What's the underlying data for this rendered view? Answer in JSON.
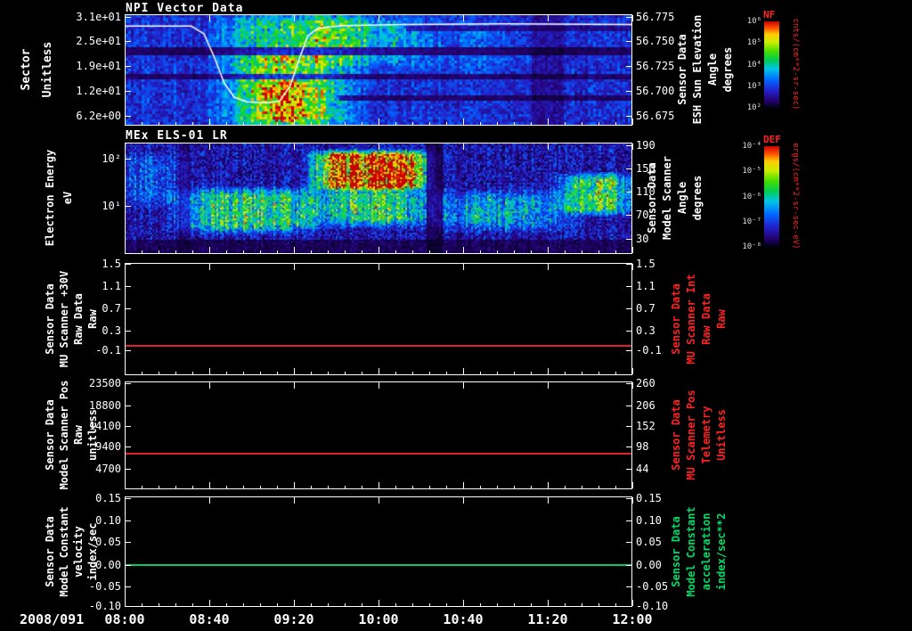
{
  "figure": {
    "background": "#000000"
  },
  "colors": {
    "axis": "#ffffff",
    "label_red": "#ff2222",
    "label_green": "#00dd66",
    "red_series": "#dd2222",
    "green_series": "#00cc66",
    "colormap": [
      [
        0,
        "#000014"
      ],
      [
        0.08,
        "#24006e"
      ],
      [
        0.2,
        "#2222cc"
      ],
      [
        0.32,
        "#0066ff"
      ],
      [
        0.45,
        "#00c4e8"
      ],
      [
        0.55,
        "#00cc55"
      ],
      [
        0.65,
        "#44dd00"
      ],
      [
        0.76,
        "#ccee00"
      ],
      [
        0.85,
        "#ffcc00"
      ],
      [
        0.92,
        "#ff5500"
      ],
      [
        1,
        "#cc0000"
      ]
    ]
  },
  "chart_data": {
    "type": "multi-panel time-series: 2 spectrograms + 3 constant line plots",
    "x_axis": {
      "date_label": "2008/091",
      "tick_labels": [
        "08:00",
        "08:40",
        "09:20",
        "10:00",
        "10:40",
        "11:20",
        "12:00"
      ],
      "range": [
        "2008/091 08:00",
        "2008/091 12:00"
      ]
    },
    "panels": [
      {
        "title": "NPI Vector Data",
        "kind": "spectrogram",
        "left_axis": {
          "label": "Sector\nUnitless",
          "color": "#ffffff",
          "ticks": [
            {
              "label": "3.1e+01",
              "pos": 0.02
            },
            {
              "label": "2.5e+01",
              "pos": 0.24
            },
            {
              "label": "1.9e+01",
              "pos": 0.46
            },
            {
              "label": "1.2e+01",
              "pos": 0.69
            },
            {
              "label": "6.2e+00",
              "pos": 0.91
            }
          ]
        },
        "right_axis": {
          "label": "Sensor Data\nESH Sun Elevation\nAngle\ndegrees",
          "color": "#ffffff",
          "ticks": [
            {
              "label": "56.775",
              "pos": 0.02
            },
            {
              "label": "56.750",
              "pos": 0.24
            },
            {
              "label": "56.725",
              "pos": 0.46
            },
            {
              "label": "56.700",
              "pos": 0.69
            },
            {
              "label": "56.675",
              "pos": 0.91
            }
          ]
        },
        "overlay_line": {
          "color": "#ffffff",
          "meaning": "ESH Sun Elevation Angle vs time",
          "points": [
            [
              0,
              0.1
            ],
            [
              0.13,
              0.1
            ],
            [
              0.155,
              0.17
            ],
            [
              0.175,
              0.38
            ],
            [
              0.195,
              0.62
            ],
            [
              0.215,
              0.75
            ],
            [
              0.24,
              0.79
            ],
            [
              0.28,
              0.8
            ],
            [
              0.305,
              0.78
            ],
            [
              0.325,
              0.65
            ],
            [
              0.345,
              0.38
            ],
            [
              0.36,
              0.19
            ],
            [
              0.38,
              0.12
            ],
            [
              0.43,
              0.095
            ],
            [
              0.55,
              0.085
            ],
            [
              0.75,
              0.08
            ],
            [
              1,
              0.085
            ]
          ]
        },
        "spec": {
          "seed": 11,
          "cell": 3,
          "base": 0.22,
          "noise": 0.09,
          "col_noise": 0.3,
          "features": [
            {
              "x0": 0.2,
              "x1": 0.44,
              "y0": 0.0,
              "y1": 1.0,
              "amp": 0.28,
              "soft": 0.06
            },
            {
              "x0": 0.24,
              "x1": 0.38,
              "y0": 0.3,
              "y1": 1.0,
              "amp": 0.2,
              "soft": 0.05
            },
            {
              "x0": 0.28,
              "x1": 0.36,
              "y0": 0.6,
              "y1": 0.95,
              "amp": 0.3,
              "soft": 0.04
            },
            {
              "x0": 0.33,
              "x1": 0.54,
              "y0": 0.0,
              "y1": 0.4,
              "amp": 0.17,
              "soft": 0.07
            },
            {
              "x0": 0.42,
              "x1": 0.78,
              "y0": 0.05,
              "y1": 0.5,
              "amp": 0.08,
              "soft": 0.08
            }
          ],
          "bands": [
            {
              "x0": 0.0,
              "x1": 1.0,
              "y0": 0.28,
              "y1": 0.35,
              "mult": 0.3
            },
            {
              "x0": 0.0,
              "x1": 1.0,
              "y0": 0.52,
              "y1": 0.58,
              "mult": 0.35
            },
            {
              "x0": 0.42,
              "x1": 1.0,
              "y0": 0.72,
              "y1": 0.78,
              "mult": 0.35
            },
            {
              "x0": 0.55,
              "x1": 1.0,
              "y0": 0.08,
              "y1": 0.13,
              "mult": 0.5
            },
            {
              "x0": 0.8,
              "x1": 0.86,
              "y0": 0.0,
              "y1": 1.0,
              "mult": 0.6
            }
          ]
        }
      },
      {
        "title": "MEx ELS-01 LR",
        "kind": "spectrogram",
        "left_axis": {
          "label": "Electron Energy\neV",
          "color": "#ffffff",
          "ticks": [
            {
              "label": "10²",
              "pos": 0.14
            },
            {
              "label": "10¹",
              "pos": 0.57
            }
          ]
        },
        "right_axis": {
          "label": "Sensor Data\nModel Scanner\nAngle\ndegrees",
          "color": "#ffffff",
          "ticks": [
            {
              "label": "190",
              "pos": 0.02
            },
            {
              "label": "150",
              "pos": 0.23
            },
            {
              "label": "110",
              "pos": 0.44
            },
            {
              "label": "70",
              "pos": 0.65
            },
            {
              "label": "30",
              "pos": 0.86
            }
          ]
        },
        "spec": {
          "seed": 42,
          "cell": 2,
          "base": 0.16,
          "noise": 0.12,
          "col_noise": 0.55,
          "features": [
            {
              "x0": 0.0,
              "x1": 0.1,
              "y0": 0.1,
              "y1": 0.55,
              "amp": 0.14,
              "soft": 0.05
            },
            {
              "x0": 0.12,
              "x1": 0.36,
              "y0": 0.42,
              "y1": 0.78,
              "amp": 0.4,
              "soft": 0.05
            },
            {
              "x0": 0.38,
              "x1": 0.585,
              "y0": 0.07,
              "y1": 0.4,
              "amp": 0.82,
              "soft": 0.03
            },
            {
              "x0": 0.38,
              "x1": 0.585,
              "y0": 0.4,
              "y1": 0.72,
              "amp": 0.38,
              "soft": 0.05
            },
            {
              "x0": 0.63,
              "x1": 0.85,
              "y0": 0.45,
              "y1": 0.75,
              "amp": 0.26,
              "soft": 0.06
            },
            {
              "x0": 0.875,
              "x1": 0.99,
              "y0": 0.28,
              "y1": 0.62,
              "amp": 0.48,
              "soft": 0.04
            }
          ],
          "bands": [
            {
              "x0": 0.0,
              "x1": 1.0,
              "y0": 0.87,
              "y1": 1.0,
              "mult": 0.4
            },
            {
              "x0": 0.595,
              "x1": 0.625,
              "y0": 0.0,
              "y1": 1.0,
              "mult": 0.35
            },
            {
              "x0": 0.105,
              "x1": 0.125,
              "y0": 0.0,
              "y1": 1.0,
              "mult": 0.55
            }
          ]
        }
      },
      {
        "title": "",
        "kind": "line",
        "left_axis": {
          "label": "Sensor Data\nMU Scanner +30V\nRaw Data\nRaw",
          "color": "#ffffff",
          "ticks": [
            {
              "label": "1.5",
              "pos": 0.01
            },
            {
              "label": "1.1",
              "pos": 0.21
            },
            {
              "label": "0.7",
              "pos": 0.405
            },
            {
              "label": "0.3",
              "pos": 0.6
            },
            {
              "label": "-0.1",
              "pos": 0.78
            }
          ]
        },
        "right_axis": {
          "label": "Sensor Data\nMU Scanner Int\nRaw Data\nRaw",
          "color": "#ff2222",
          "ticks": [
            {
              "label": "1.5",
              "pos": 0.01
            },
            {
              "label": "1.1",
              "pos": 0.21
            },
            {
              "label": "0.7",
              "pos": 0.405
            },
            {
              "label": "0.3",
              "pos": 0.6
            },
            {
              "label": "-0.1",
              "pos": 0.78
            }
          ]
        },
        "line": {
          "color": "#dd2222",
          "pos": 0.735,
          "value_estimate": 0.05
        }
      },
      {
        "title": "",
        "kind": "line",
        "left_axis": {
          "label": "Sensor Data\nModel Scanner Pos\nRaw\nunitless",
          "color": "#ffffff",
          "ticks": [
            {
              "label": "23500",
              "pos": 0.02
            },
            {
              "label": "18800",
              "pos": 0.22
            },
            {
              "label": "14100",
              "pos": 0.41
            },
            {
              "label": "9400",
              "pos": 0.605
            },
            {
              "label": "4700",
              "pos": 0.81
            }
          ]
        },
        "right_axis": {
          "label": "Sensor Data\nMU Scanner Pos\nTelemetry\nUnitless",
          "color": "#ff2222",
          "ticks": [
            {
              "label": "260",
              "pos": 0.02
            },
            {
              "label": "206",
              "pos": 0.22
            },
            {
              "label": "152",
              "pos": 0.41
            },
            {
              "label": "98",
              "pos": 0.605
            },
            {
              "label": "44",
              "pos": 0.81
            }
          ]
        },
        "line": {
          "color": "#dd2222",
          "pos": 0.665,
          "value_estimate": 8100
        }
      },
      {
        "title": "",
        "kind": "line",
        "left_axis": {
          "label": "Sensor Data\nModel Constant\nvelocity\nindex/sec",
          "color": "#ffffff",
          "ticks": [
            {
              "label": "0.15",
              "pos": 0.016
            },
            {
              "label": "0.10",
              "pos": 0.22
            },
            {
              "label": "0.05",
              "pos": 0.415
            },
            {
              "label": "0.00",
              "pos": 0.617
            },
            {
              "label": "-0.05",
              "pos": 0.813
            },
            {
              "label": "-0.10",
              "pos": 0.99
            }
          ]
        },
        "right_axis": {
          "label": "Sensor Data\nModel Constant\nacceleration\nindex/sec**2",
          "color": "#00dd66",
          "ticks": [
            {
              "label": "0.15",
              "pos": 0.016
            },
            {
              "label": "0.10",
              "pos": 0.22
            },
            {
              "label": "0.05",
              "pos": 0.415
            },
            {
              "label": "0.00",
              "pos": 0.617
            },
            {
              "label": "-0.05",
              "pos": 0.813
            },
            {
              "label": "-0.10",
              "pos": 0.99
            }
          ]
        },
        "line": {
          "color": "#00cc66",
          "pos": 0.617,
          "value_estimate": 0.0
        }
      }
    ],
    "colorbars": [
      {
        "name": "NF",
        "units": "cnts/(cm**2-sr-sec)",
        "tick_labels": [
          "10⁶",
          "10⁵",
          "10⁴",
          "10³",
          "10²"
        ]
      },
      {
        "name": "DEF",
        "units": "ergs/(cm**2-sr-sec-eV)",
        "tick_labels": [
          "10⁻⁴",
          "10⁻⁵",
          "10⁻⁶",
          "10⁻⁷",
          "10⁻⁸"
        ]
      }
    ]
  }
}
